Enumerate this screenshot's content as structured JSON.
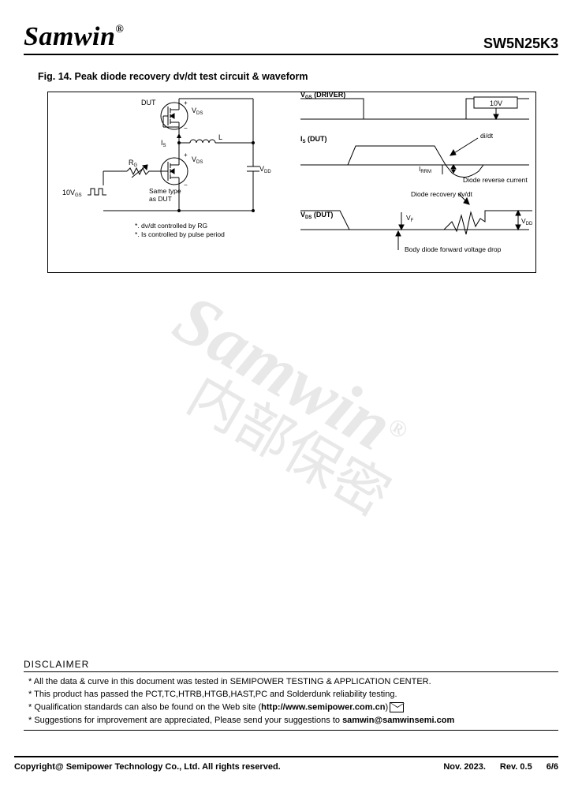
{
  "header": {
    "logo": "Samwin",
    "reg": "®",
    "part": "SW5N25K3"
  },
  "fig": {
    "title": "Fig. 14. Peak diode recovery dv/dt test circuit & waveform",
    "labels": {
      "dut": "DUT",
      "vds_top": "VDS",
      "is": "IS",
      "l": "L",
      "vds_mid": "VDS",
      "vdd": "VDD",
      "rg": "RG",
      "vgs10": "10VGS",
      "same": "Same type as DUT",
      "note1": "*. dv/dt controlled by RG",
      "note2": "*. Is controlled by pulse period",
      "vgs_driver": "VGS (DRIVER)",
      "tenv": "10V",
      "is_dut": "IS (DUT)",
      "didt": "di/dt",
      "irrm": "IRRM",
      "diode_rev": "Diode reverse current",
      "vds_dut": "VDS (DUT)",
      "vf": "VF",
      "vdd2": "VDD",
      "dvdt": "Diode recovery dv/dt",
      "body": "Body diode forward voltage drop"
    },
    "colors": {
      "stroke": "#000000",
      "bg": "#ffffff"
    }
  },
  "watermark": {
    "w1": "Samwin",
    "w2": "内部保密",
    "reg": "®"
  },
  "disclaimer": {
    "title": "DISCLAIMER",
    "items": [
      {
        "pre": "* All the data & curve in this document was tested in SEMIPOWER TESTING & APPLICATION CENTER."
      },
      {
        "pre": "* This product has passed the PCT,TC,HTRB,HTGB,HAST,PC and Solderdunk reliability testing."
      },
      {
        "pre": "* Qualification standards can also be found on the Web site (",
        "bold": "http://www.semipower.com.cn",
        "post": ")",
        "mail": true
      },
      {
        "pre": "* Suggestions for improvement are appreciated, Please send your suggestions to ",
        "bold": "samwin@samwinsemi.com"
      }
    ]
  },
  "footer": {
    "copyright": "Copyright@ Semipower Technology Co., Ltd. All rights reserved.",
    "date": "Nov. 2023.",
    "rev": "Rev. 0.5",
    "page": "6/6"
  }
}
